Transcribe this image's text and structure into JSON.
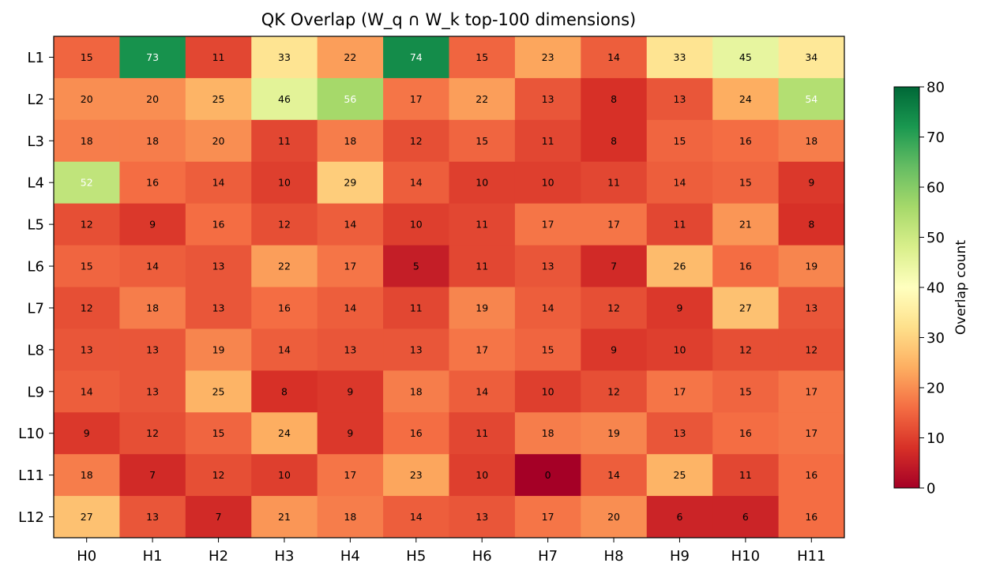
{
  "chart_data": {
    "type": "heatmap",
    "title": "QK Overlap (W_q ∩ W_k top-100 dimensions)",
    "x_labels": [
      "H0",
      "H1",
      "H2",
      "H3",
      "H4",
      "H5",
      "H6",
      "H7",
      "H8",
      "H9",
      "H10",
      "H11"
    ],
    "y_labels": [
      "L1",
      "L2",
      "L3",
      "L4",
      "L5",
      "L6",
      "L7",
      "L8",
      "L9",
      "L10",
      "L11",
      "L12"
    ],
    "values": [
      [
        15,
        73,
        11,
        33,
        22,
        74,
        15,
        23,
        14,
        33,
        45,
        34
      ],
      [
        20,
        20,
        25,
        46,
        56,
        17,
        22,
        13,
        8,
        13,
        24,
        54
      ],
      [
        18,
        18,
        20,
        11,
        18,
        12,
        15,
        11,
        8,
        15,
        16,
        18
      ],
      [
        52,
        16,
        14,
        10,
        29,
        14,
        10,
        10,
        11,
        14,
        15,
        9
      ],
      [
        12,
        9,
        16,
        12,
        14,
        10,
        11,
        17,
        17,
        11,
        21,
        8
      ],
      [
        15,
        14,
        13,
        22,
        17,
        5,
        11,
        13,
        7,
        26,
        16,
        19
      ],
      [
        12,
        18,
        13,
        16,
        14,
        11,
        19,
        14,
        12,
        9,
        27,
        13
      ],
      [
        13,
        13,
        19,
        14,
        13,
        13,
        17,
        15,
        9,
        10,
        12,
        12
      ],
      [
        14,
        13,
        25,
        8,
        9,
        18,
        14,
        10,
        12,
        17,
        15,
        17
      ],
      [
        9,
        12,
        15,
        24,
        9,
        16,
        11,
        18,
        19,
        13,
        16,
        17
      ],
      [
        18,
        7,
        12,
        10,
        17,
        23,
        10,
        0,
        14,
        25,
        11,
        16
      ],
      [
        27,
        13,
        7,
        21,
        18,
        14,
        13,
        17,
        20,
        6,
        6,
        16
      ]
    ],
    "colormap": "RdYlGn",
    "vmin": 0,
    "vmax": 80,
    "colorbar": {
      "label": "Overlap count",
      "ticks": [
        0,
        10,
        20,
        30,
        40,
        50,
        60,
        70,
        80
      ]
    }
  }
}
